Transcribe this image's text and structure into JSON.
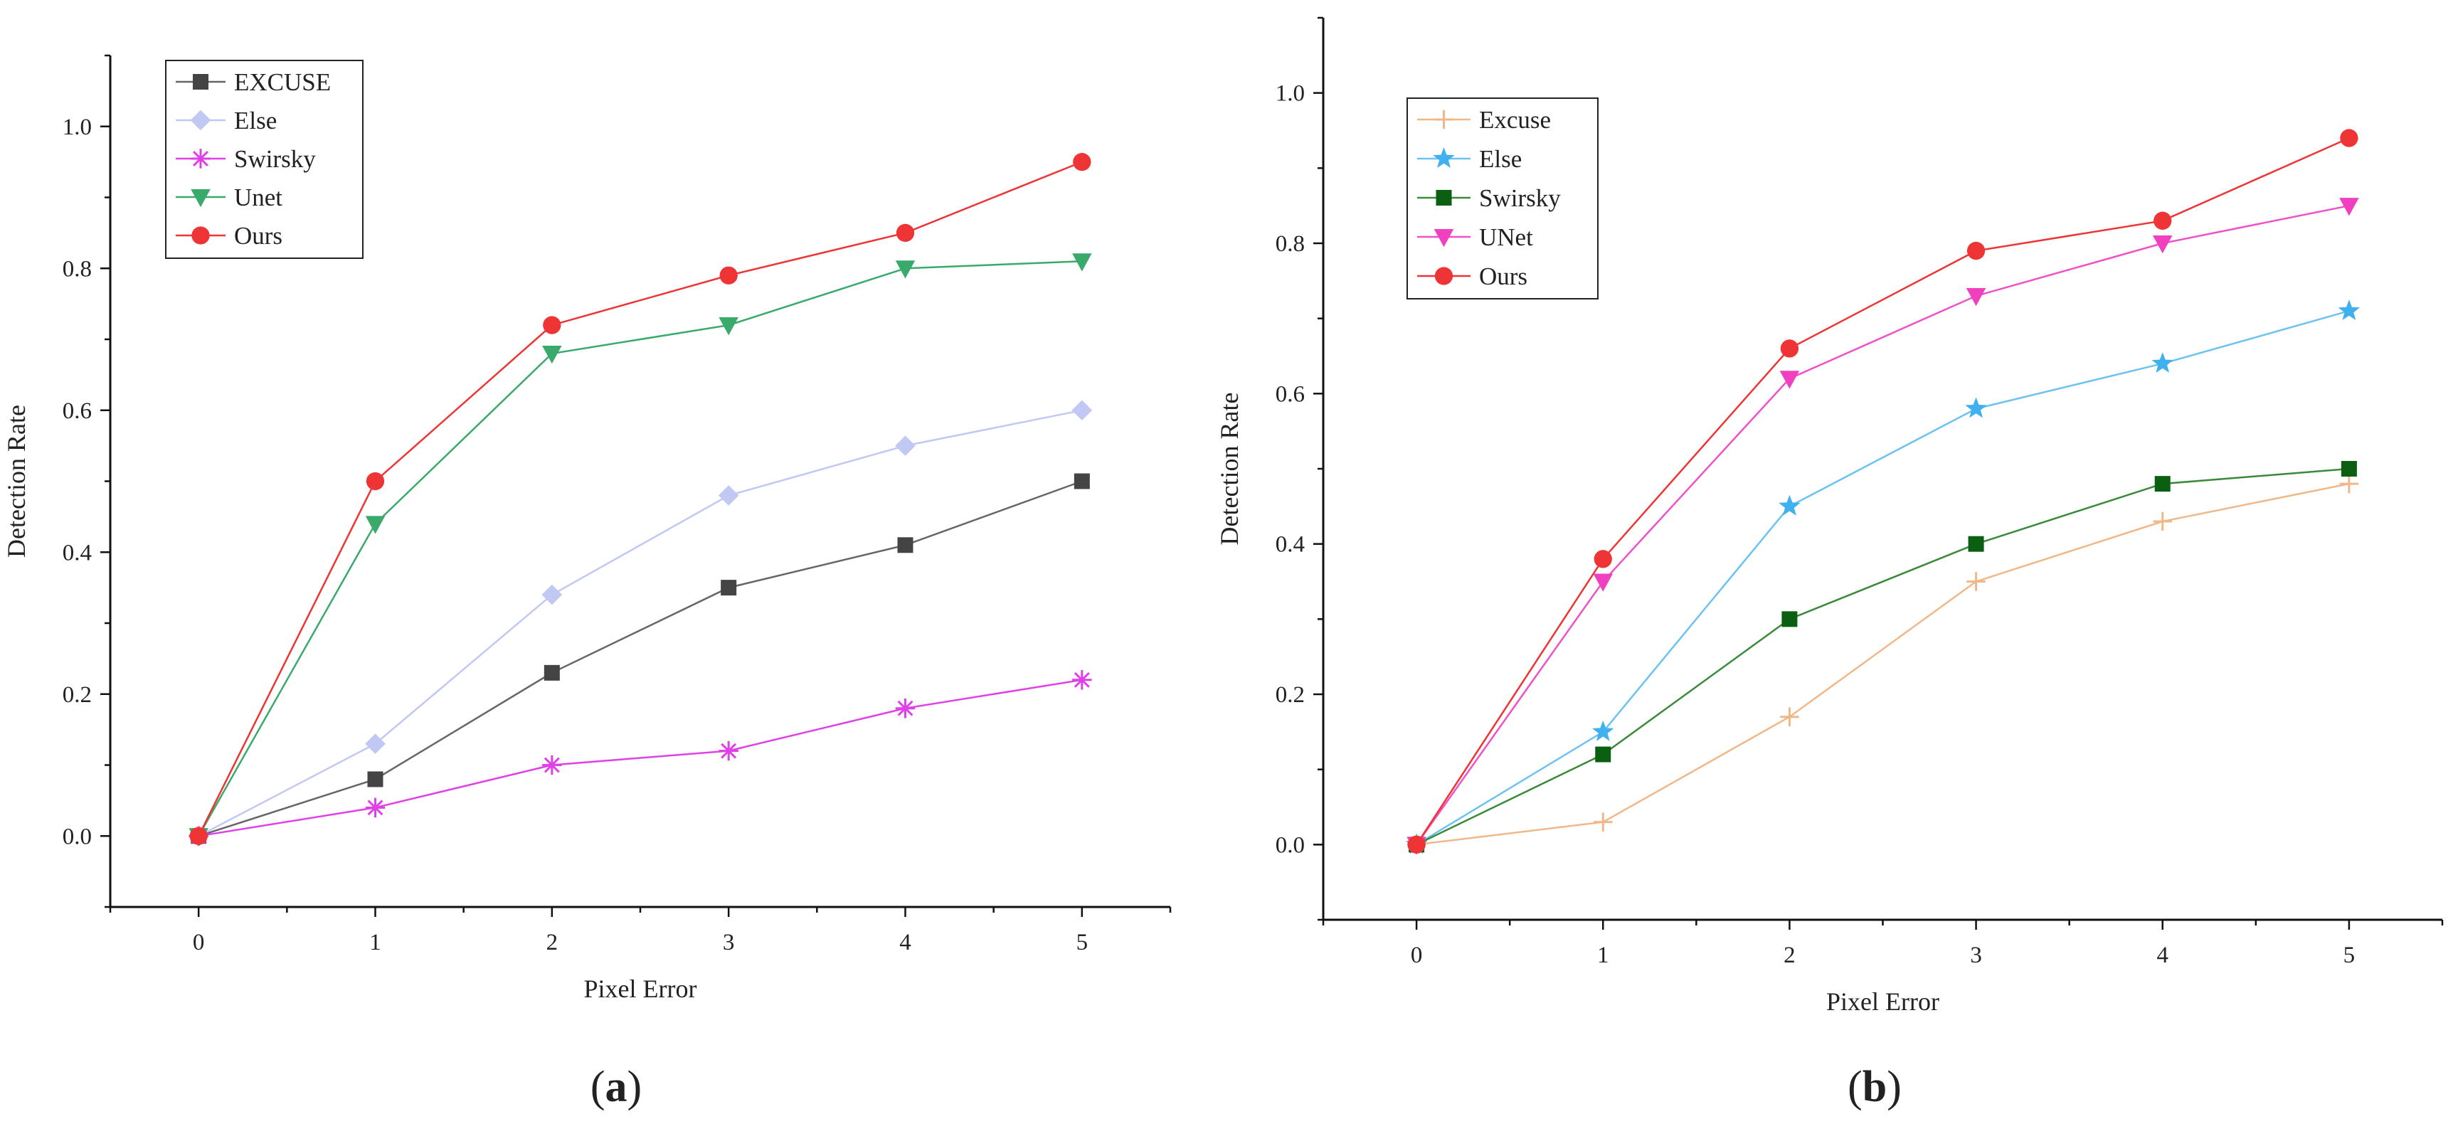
{
  "chart_data": [
    {
      "type": "line",
      "panel_label": "a",
      "title": "",
      "xlabel": "Pixel Error",
      "ylabel": "Detection Rate",
      "x": [
        0,
        1,
        2,
        3,
        4,
        5
      ],
      "xticks": [
        "0",
        "1",
        "2",
        "3",
        "4",
        "5"
      ],
      "xlim": [
        -0.5,
        5.5
      ],
      "ylim": [
        -0.1,
        1.1
      ],
      "yticks": [
        "0.0",
        "0.2",
        "0.4",
        "0.6",
        "0.8",
        "1.0"
      ],
      "legend_position": "top-left",
      "grid": false,
      "series": [
        {
          "name": "EXCUSE",
          "marker": "square",
          "color": "#444444",
          "line_color": "#666666",
          "values": [
            0.0,
            0.08,
            0.23,
            0.35,
            0.41,
            0.5
          ]
        },
        {
          "name": "Else",
          "marker": "diamond",
          "color": "#c2c8f4",
          "line_color": "#c2c8f4",
          "values": [
            0.0,
            0.13,
            0.34,
            0.48,
            0.55,
            0.6
          ]
        },
        {
          "name": "Swirsky",
          "marker": "asterisk",
          "color": "#e040e8",
          "line_color": "#e040e8",
          "values": [
            0.0,
            0.04,
            0.1,
            0.12,
            0.18,
            0.22
          ]
        },
        {
          "name": "Unet",
          "marker": "triangle-down",
          "color": "#3aaa6c",
          "line_color": "#3aaa6c",
          "values": [
            0.0,
            0.44,
            0.68,
            0.72,
            0.8,
            0.81
          ]
        },
        {
          "name": "Ours",
          "marker": "circle",
          "color": "#ee3434",
          "line_color": "#ee3434",
          "values": [
            0.0,
            0.5,
            0.72,
            0.79,
            0.85,
            0.95
          ]
        }
      ]
    },
    {
      "type": "line",
      "panel_label": "b",
      "title": "",
      "xlabel": "Pixel Error",
      "ylabel": "Detection Rate",
      "x": [
        0,
        1,
        2,
        3,
        4,
        5
      ],
      "xticks": [
        "0",
        "1",
        "2",
        "3",
        "4",
        "5"
      ],
      "xlim": [
        -0.5,
        5.5
      ],
      "ylim": [
        -0.1,
        1.1
      ],
      "yticks": [
        "0.0",
        "0.2",
        "0.4",
        "0.6",
        "0.8",
        "1.0"
      ],
      "legend_position": "top-left",
      "grid": false,
      "series": [
        {
          "name": "Excuse",
          "marker": "plus",
          "color": "#f0b888",
          "line_color": "#f0b888",
          "values": [
            0.0,
            0.03,
            0.17,
            0.35,
            0.43,
            0.48
          ]
        },
        {
          "name": "Else",
          "marker": "star",
          "color": "#40b0ee",
          "line_color": "#6cc2f0",
          "values": [
            0.0,
            0.15,
            0.45,
            0.58,
            0.64,
            0.71
          ]
        },
        {
          "name": "Swirsky",
          "marker": "square",
          "color": "#0a6010",
          "line_color": "#3a8a3a",
          "values": [
            0.0,
            0.12,
            0.3,
            0.4,
            0.48,
            0.5
          ]
        },
        {
          "name": "UNet",
          "marker": "triangle-down",
          "color": "#f040c0",
          "line_color": "#f050c8",
          "values": [
            0.0,
            0.35,
            0.62,
            0.73,
            0.8,
            0.85
          ]
        },
        {
          "name": "Ours",
          "marker": "circle",
          "color": "#ee3434",
          "line_color": "#ee3434",
          "values": [
            0.0,
            0.38,
            0.66,
            0.79,
            0.83,
            0.94
          ]
        }
      ]
    }
  ]
}
